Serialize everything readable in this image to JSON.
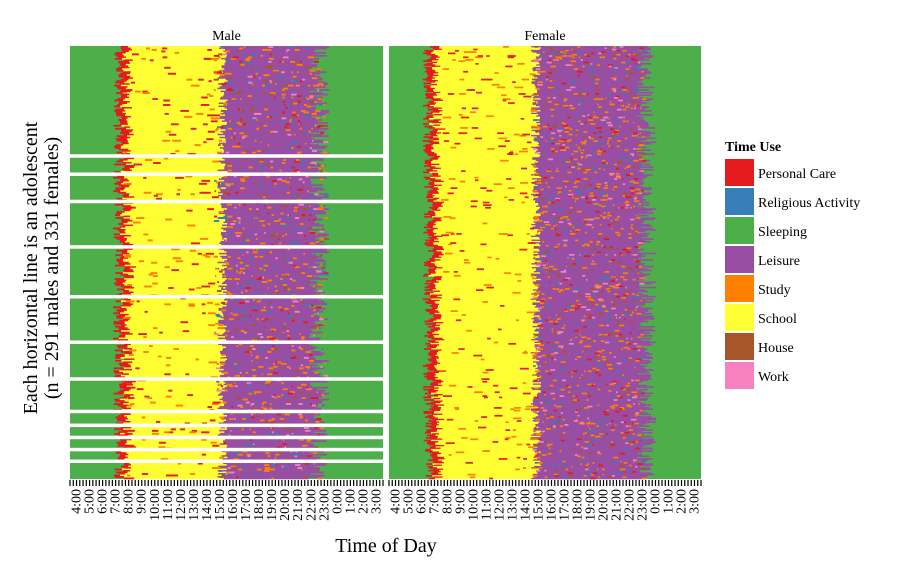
{
  "chart_data": {
    "type": "heatmap",
    "xlabel": "Time of Day",
    "ylabel": "Each horizontal line is an adolescent",
    "ylabel_line2": "(n = 291 males and 331 females)",
    "x_ticks": [
      "4:00",
      "5:00",
      "6:00",
      "7:00",
      "8:00",
      "9:00",
      "10:00",
      "11:00",
      "12:00",
      "13:00",
      "14:00",
      "15:00",
      "16:00",
      "17:00",
      "18:00",
      "19:00",
      "20:00",
      "21:00",
      "22:00",
      "23:00",
      "0:00",
      "1:00",
      "2:00",
      "3:00"
    ],
    "panels": [
      {
        "name": "Male",
        "n": 291
      },
      {
        "name": "Female",
        "n": 331
      }
    ],
    "legend": {
      "title": "Time Use",
      "position": "right",
      "items": [
        {
          "label": "Personal Care",
          "color": "#E41A1C"
        },
        {
          "label": "Religious Activity",
          "color": "#377EB8"
        },
        {
          "label": "Sleeping",
          "color": "#4DAF4A"
        },
        {
          "label": "Leisure",
          "color": "#984EA3"
        },
        {
          "label": "Study",
          "color": "#FF7F00"
        },
        {
          "label": "School",
          "color": "#FFFF33"
        },
        {
          "label": "House",
          "color": "#A65628"
        },
        {
          "label": "Work",
          "color": "#F781BF"
        }
      ]
    },
    "typical_day": [
      {
        "activity": "Sleeping",
        "from": "4:00",
        "to": "7:00"
      },
      {
        "activity": "Personal Care",
        "from": "7:00",
        "to": "8:00"
      },
      {
        "activity": "School",
        "from": "8:00",
        "to": "15:00"
      },
      {
        "activity": "Leisure",
        "from": "15:00",
        "to": "23:00"
      },
      {
        "activity": "Sleeping",
        "from": "23:00",
        "to": "4:00"
      }
    ]
  }
}
